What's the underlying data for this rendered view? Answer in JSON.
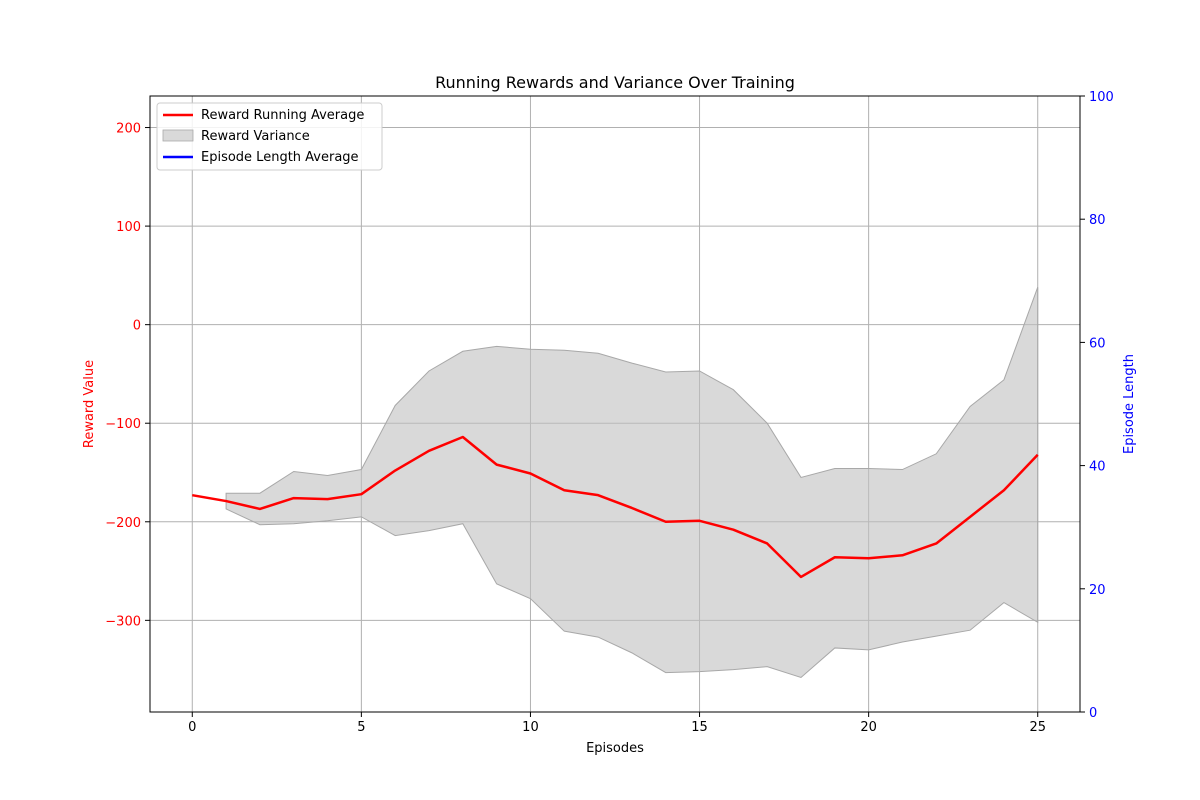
{
  "chart_data": {
    "type": "line",
    "title": "Running Rewards and Variance Over Training",
    "xlabel": "Episodes",
    "ylabel_left": "Reward Value",
    "ylabel_right": "Episode Length",
    "xlim": [
      -1.25,
      26.25
    ],
    "ylim_left": [
      -393,
      232
    ],
    "ylim_right": [
      0,
      100
    ],
    "xticks": [
      0,
      5,
      10,
      15,
      20,
      25
    ],
    "yticks_left": [
      -300,
      -200,
      -100,
      0,
      100,
      200
    ],
    "yticks_right": [
      0,
      20,
      40,
      60,
      80,
      100
    ],
    "grid": true,
    "legend_position": "upper-left",
    "colors": {
      "reward_line": "#ff0000",
      "variance_fill": "#bfbfbf",
      "episode_length_line": "#0000ff",
      "left_axis_text": "#ff0000",
      "right_axis_text": "#0000ff"
    },
    "series": [
      {
        "name": "Reward Running Average",
        "x": [
          0,
          1,
          2,
          3,
          4,
          5,
          6,
          7,
          8,
          9,
          10,
          11,
          12,
          13,
          14,
          15,
          16,
          17,
          18,
          19,
          20,
          21,
          22,
          23,
          24,
          25
        ],
        "values": [
          -173,
          -179,
          -187,
          -176,
          -177,
          -172,
          -148,
          -128,
          -114,
          -142,
          -151,
          -168,
          -173,
          -186,
          -200,
          -199,
          -208,
          -222,
          -256,
          -236,
          -237,
          -234,
          -222,
          -195,
          -168,
          -132
        ]
      },
      {
        "name": "Reward Variance",
        "x": [
          1,
          2,
          3,
          4,
          5,
          6,
          7,
          8,
          9,
          10,
          11,
          12,
          13,
          14,
          15,
          16,
          17,
          18,
          19,
          20,
          21,
          22,
          23,
          24,
          25
        ],
        "upper": [
          -171,
          -171,
          -149,
          -153,
          -147,
          -82,
          -47,
          -27,
          -22,
          -25,
          -26,
          -29,
          -39,
          -48,
          -47,
          -66,
          -100,
          -155,
          -146,
          -146,
          -147,
          -131,
          -83,
          -56,
          38
        ],
        "lower": [
          -187,
          -203,
          -202,
          -199,
          -195,
          -214,
          -209,
          -202,
          -263,
          -278,
          -311,
          -317,
          -333,
          -353,
          -352,
          -350,
          -347,
          -358,
          -328,
          -330,
          -322,
          -316,
          -310,
          -282,
          -302
        ]
      },
      {
        "name": "Episode Length Average",
        "x": [],
        "values": []
      }
    ],
    "legend": [
      "Reward Running Average",
      "Reward Variance",
      "Episode Length Average"
    ]
  }
}
